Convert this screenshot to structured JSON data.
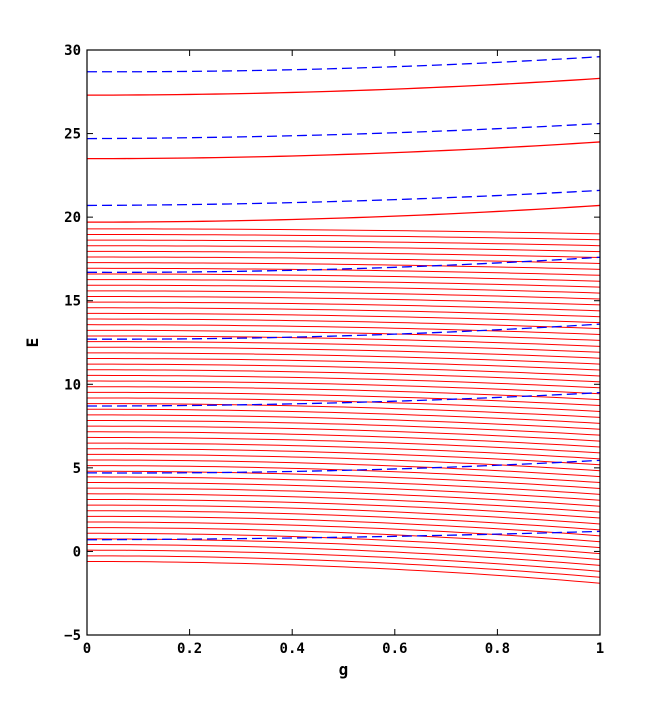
{
  "chart_data": {
    "type": "line",
    "title": "",
    "xlabel": "g",
    "ylabel": "E",
    "xlim": [
      0,
      1
    ],
    "ylim": [
      -5,
      30
    ],
    "xticks": [
      0,
      0.2,
      0.4,
      0.6,
      0.8,
      1
    ],
    "xtick_labels": [
      "0",
      "0.2",
      "0.4",
      "0.6",
      "0.8",
      "1"
    ],
    "yticks": [
      -5,
      0,
      5,
      10,
      15,
      20,
      25,
      30
    ],
    "ytick_labels": [
      "−5",
      "0",
      "5",
      "10",
      "15",
      "20",
      "25",
      "30"
    ],
    "grid": false,
    "legend": "none",
    "series": [
      {
        "style": "solid",
        "color": "#ff0000",
        "x": [
          0,
          1
        ],
        "band": {
          "count": 60,
          "start_at_g0": [
            -0.6,
            19.3
          ],
          "end_at_g1": [
            -1.9,
            19.0
          ]
        }
      },
      {
        "style": "solid",
        "color": "#ff0000",
        "x": [
          0,
          0.5,
          1
        ],
        "curves": [
          [
            19.7,
            19.95,
            20.7
          ],
          [
            23.5,
            23.75,
            24.5
          ],
          [
            27.3,
            27.55,
            28.3
          ]
        ]
      },
      {
        "style": "dashed",
        "color": "#0000ff",
        "x": [
          0,
          0.5,
          1
        ],
        "curves": [
          [
            0.7,
            0.85,
            1.2
          ],
          [
            4.7,
            4.85,
            5.45
          ],
          [
            8.7,
            8.9,
            9.5
          ],
          [
            12.7,
            12.9,
            13.6
          ],
          [
            16.7,
            16.9,
            17.6
          ],
          [
            20.7,
            20.95,
            21.6
          ],
          [
            24.7,
            24.95,
            25.6
          ],
          [
            28.7,
            28.9,
            29.6
          ]
        ]
      }
    ]
  }
}
